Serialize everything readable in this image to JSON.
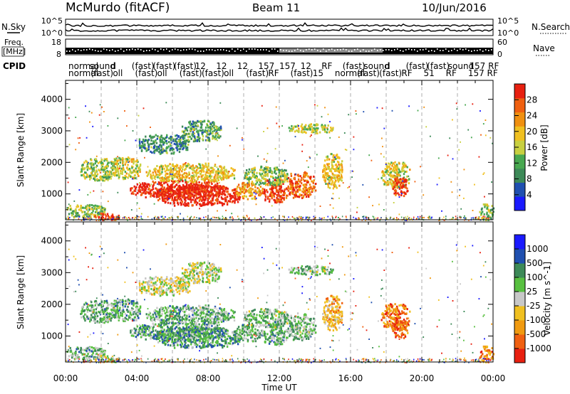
{
  "header": {
    "station": "McMurdo (fitACF)",
    "beam": "Beam 11",
    "date": "10/Jun/2016"
  },
  "noise_panel": {
    "left_label": "N.Sky",
    "right_label": "N.Search",
    "left_ticks": [
      "10^5",
      "10^0"
    ],
    "right_ticks": [
      "10^5",
      "10^0"
    ]
  },
  "freq_panel": {
    "left_label_top": "Freq.",
    "left_label_bottom": "[MHz]",
    "right_label": "Nave",
    "left_ticks": [
      "18",
      "8"
    ],
    "right_ticks": [
      "60",
      "0"
    ]
  },
  "cpid": {
    "label": "CPID",
    "row1": [
      "normal",
      "sound",
      "d",
      "(fast)",
      "(fast)",
      "(fast)",
      "12",
      "12",
      "12",
      "157",
      "157",
      "12",
      "RF",
      "(fast)",
      "sound",
      "d",
      "(fast)",
      "(fast)",
      "sound",
      "157 RF"
    ],
    "row2": [
      "normal",
      "(fast)",
      "oll",
      "(fast)",
      "oll",
      "(fast)",
      "(fast)",
      "oll",
      "(fast)",
      "RF",
      "(fast)",
      "15",
      "normal",
      "(fast)",
      "(fast)",
      "RF",
      "51",
      "RF",
      "157 RF"
    ]
  },
  "colors": {
    "power": [
      "#1a1aff",
      "#2050b0",
      "#3d8a58",
      "#48a850",
      "#c8d040",
      "#f0c020",
      "#f09010",
      "#f06010",
      "#e82010"
    ],
    "velocity": [
      "#e82010",
      "#f06010",
      "#f09a10",
      "#f0c020",
      "#c8c8c8",
      "#58c040",
      "#3d8a58",
      "#2050b0",
      "#1a1aff"
    ],
    "noise_line": "#000000",
    "grid_line": "#9a9a9a"
  },
  "chart_data": [
    {
      "type": "heatmap",
      "name": "power",
      "xlabel": "",
      "ylabel": "Slant Range [km]",
      "xlim": [
        0,
        24
      ],
      "ylim": [
        180,
        4600
      ],
      "yticks": [
        1000,
        2000,
        3000,
        4000
      ],
      "xgrid_hours": [
        2,
        4,
        6,
        8,
        10,
        12,
        14,
        16,
        18,
        20,
        22
      ],
      "colorbar": {
        "label": "Power [dB]",
        "range": [
          0,
          32
        ],
        "ticks": [
          4,
          8,
          12,
          16,
          20,
          24,
          28
        ]
      },
      "regions": [
        {
          "t0": 0.0,
          "t1": 2.2,
          "r0": 300,
          "r1": 700,
          "level": 0.45
        },
        {
          "t0": 1.6,
          "t1": 3.0,
          "r0": 200,
          "r1": 420,
          "level": 0.95
        },
        {
          "t0": 0.8,
          "t1": 2.8,
          "r0": 1450,
          "r1": 2150,
          "level": 0.45
        },
        {
          "t0": 2.5,
          "t1": 4.2,
          "r0": 1500,
          "r1": 2200,
          "level": 0.55
        },
        {
          "t0": 3.6,
          "t1": 9.0,
          "r0": 900,
          "r1": 1450,
          "level": 0.95
        },
        {
          "t0": 5.0,
          "t1": 9.8,
          "r0": 650,
          "r1": 1300,
          "level": 0.97
        },
        {
          "t0": 4.5,
          "t1": 9.5,
          "r0": 1400,
          "r1": 2000,
          "level": 0.6
        },
        {
          "t0": 4.0,
          "t1": 7.0,
          "r0": 2300,
          "r1": 2900,
          "level": 0.3
        },
        {
          "t0": 6.5,
          "t1": 8.7,
          "r0": 2700,
          "r1": 3350,
          "level": 0.35
        },
        {
          "t0": 9.5,
          "t1": 11.0,
          "r0": 850,
          "r1": 1400,
          "level": 0.7
        },
        {
          "t0": 11.0,
          "t1": 12.5,
          "r0": 750,
          "r1": 1500,
          "level": 0.92
        },
        {
          "t0": 12.4,
          "t1": 14.0,
          "r0": 900,
          "r1": 1750,
          "level": 0.8
        },
        {
          "t0": 10.0,
          "t1": 12.5,
          "r0": 1300,
          "r1": 1900,
          "level": 0.45
        },
        {
          "t0": 14.4,
          "t1": 15.5,
          "r0": 1200,
          "r1": 2300,
          "level": 0.6
        },
        {
          "t0": 12.5,
          "t1": 15.0,
          "r0": 2950,
          "r1": 3250,
          "level": 0.5
        },
        {
          "t0": 17.7,
          "t1": 19.3,
          "r0": 1200,
          "r1": 2050,
          "level": 0.55
        },
        {
          "t0": 18.3,
          "t1": 19.2,
          "r0": 950,
          "r1": 1550,
          "level": 0.92
        },
        {
          "t0": 23.2,
          "t1": 24.0,
          "r0": 200,
          "r1": 700,
          "level": 0.45
        }
      ]
    },
    {
      "type": "heatmap",
      "name": "velocity",
      "xlabel": "Time UT",
      "ylabel": "Slant Range [km]",
      "xlim": [
        0,
        24
      ],
      "ylim": [
        180,
        4600
      ],
      "yticks": [
        1000,
        2000,
        3000,
        4000
      ],
      "xticks": [
        "00:00",
        "04:00",
        "08:00",
        "12:00",
        "16:00",
        "20:00",
        "00:00"
      ],
      "xgrid_hours": [
        2,
        4,
        6,
        8,
        10,
        12,
        14,
        16,
        18,
        20,
        22
      ],
      "colorbar": {
        "label": "Velocity [m s^-1]",
        "ticks": [
          "1000",
          "500",
          "100",
          "25",
          "-25",
          "-100",
          "-500",
          "-1000"
        ]
      },
      "regions": [
        {
          "t0": 0.0,
          "t1": 2.2,
          "r0": 300,
          "r1": 700,
          "level": 0.62
        },
        {
          "t0": 1.6,
          "t1": 3.0,
          "r0": 200,
          "r1": 420,
          "level": 0.45
        },
        {
          "t0": 0.8,
          "t1": 2.8,
          "r0": 1450,
          "r1": 2150,
          "level": 0.62
        },
        {
          "t0": 2.5,
          "t1": 4.2,
          "r0": 1500,
          "r1": 2200,
          "level": 0.66
        },
        {
          "t0": 3.6,
          "t1": 9.0,
          "r0": 900,
          "r1": 1450,
          "level": 0.66
        },
        {
          "t0": 5.0,
          "t1": 9.8,
          "r0": 650,
          "r1": 1300,
          "level": 0.68
        },
        {
          "t0": 4.5,
          "t1": 9.5,
          "r0": 1400,
          "r1": 2000,
          "level": 0.63
        },
        {
          "t0": 4.0,
          "t1": 7.0,
          "r0": 2300,
          "r1": 2900,
          "level": 0.48
        },
        {
          "t0": 6.5,
          "t1": 8.7,
          "r0": 2700,
          "r1": 3350,
          "level": 0.5
        },
        {
          "t0": 9.5,
          "t1": 11.0,
          "r0": 850,
          "r1": 1400,
          "level": 0.62
        },
        {
          "t0": 11.0,
          "t1": 12.5,
          "r0": 750,
          "r1": 1500,
          "level": 0.64
        },
        {
          "t0": 12.4,
          "t1": 14.0,
          "r0": 900,
          "r1": 1750,
          "level": 0.6
        },
        {
          "t0": 10.0,
          "t1": 12.5,
          "r0": 1300,
          "r1": 1900,
          "level": 0.6
        },
        {
          "t0": 14.4,
          "t1": 15.5,
          "r0": 1200,
          "r1": 2300,
          "level": 0.35
        },
        {
          "t0": 12.5,
          "t1": 15.0,
          "r0": 2950,
          "r1": 3250,
          "level": 0.6
        },
        {
          "t0": 17.7,
          "t1": 19.3,
          "r0": 1200,
          "r1": 2050,
          "level": 0.22
        },
        {
          "t0": 18.3,
          "t1": 19.2,
          "r0": 950,
          "r1": 1550,
          "level": 0.2
        },
        {
          "t0": 23.2,
          "t1": 24.0,
          "r0": 200,
          "r1": 700,
          "level": 0.25
        }
      ]
    }
  ]
}
